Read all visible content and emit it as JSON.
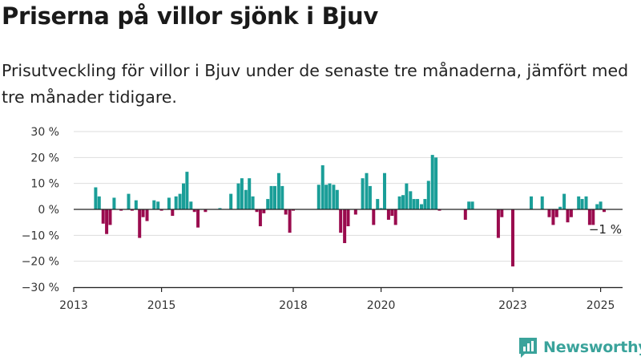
{
  "header": {
    "title": "Priserna på villor sjönk i Bjuv",
    "subtitle": "Prisutveckling för villor i Bjuv under de senaste tre månaderna, jämfört med tre månader tidigare."
  },
  "brand": {
    "name": "Newsworthy",
    "icon": "newsworthy-logo-icon",
    "color": "#3aa39b"
  },
  "colors": {
    "positive": "#1a9e98",
    "negative": "#9a0b4e",
    "grid": "#dddddd",
    "axis": "#222222"
  },
  "chart_data": {
    "type": "bar",
    "title": "",
    "xlabel": "",
    "ylabel": "",
    "ylim": [
      -30,
      30
    ],
    "yticks": [
      30,
      20,
      10,
      0,
      -10,
      -20,
      -30
    ],
    "ytick_labels": [
      "30 %",
      "20 %",
      "10 %",
      "0 %",
      "−10 %",
      "−20 %",
      "−30 %"
    ],
    "xlim": [
      2013.0,
      2025.5
    ],
    "xticks": [
      2013,
      2015,
      2018,
      2020,
      2023,
      2025
    ],
    "xtick_labels": [
      "2013",
      "2015",
      "2018",
      "2020",
      "2023",
      "2025"
    ],
    "last_value_label": "−1 %",
    "grid": true,
    "x": [
      2013.5,
      2013.58,
      2013.67,
      2013.75,
      2013.83,
      2013.92,
      2014.08,
      2014.25,
      2014.33,
      2014.42,
      2014.5,
      2014.58,
      2014.67,
      2014.83,
      2014.92,
      2015.0,
      2015.17,
      2015.25,
      2015.33,
      2015.42,
      2015.5,
      2015.58,
      2015.67,
      2015.75,
      2015.83,
      2016.0,
      2016.33,
      2016.58,
      2016.75,
      2016.83,
      2016.92,
      2017.0,
      2017.08,
      2017.17,
      2017.25,
      2017.33,
      2017.42,
      2017.5,
      2017.58,
      2017.67,
      2017.75,
      2017.83,
      2017.92,
      2018.0,
      2018.58,
      2018.67,
      2018.75,
      2018.83,
      2018.92,
      2019.0,
      2019.08,
      2019.17,
      2019.25,
      2019.42,
      2019.58,
      2019.67,
      2019.75,
      2019.83,
      2019.92,
      2020.0,
      2020.08,
      2020.17,
      2020.25,
      2020.33,
      2020.42,
      2020.5,
      2020.58,
      2020.67,
      2020.75,
      2020.83,
      2020.92,
      2021.0,
      2021.08,
      2021.17,
      2021.25,
      2021.33,
      2021.92,
      2022.0,
      2022.08,
      2022.67,
      2022.75,
      2023.0,
      2023.42,
      2023.67,
      2023.83,
      2023.92,
      2024.0,
      2024.08,
      2024.17,
      2024.25,
      2024.33,
      2024.5,
      2024.58,
      2024.67,
      2024.75,
      2024.83,
      2024.92,
      2025.0,
      2025.08
    ],
    "values": [
      8.5,
      5,
      -5.5,
      -9.5,
      -6,
      4.5,
      -0.5,
      6,
      -0.5,
      3.5,
      -11,
      -3,
      -4.5,
      3.5,
      3,
      -0.5,
      4.5,
      -2.5,
      5,
      6,
      10,
      14.5,
      3,
      -1,
      -7,
      -1,
      0.5,
      6,
      10,
      12,
      7.5,
      12,
      5,
      -1,
      -6.5,
      -1.5,
      4,
      9,
      9,
      14,
      9,
      -2,
      -9,
      -0.5,
      9.5,
      17,
      9.5,
      10,
      9.5,
      7.5,
      -9,
      -13,
      -6.5,
      -2,
      12,
      14,
      9,
      -6,
      4,
      0.5,
      14,
      -4,
      -2.5,
      -6,
      5,
      5.5,
      10,
      7,
      4,
      4,
      2,
      4,
      11,
      21,
      20,
      -0.5,
      -4,
      3,
      3,
      -11,
      -3,
      -22,
      5,
      5,
      -3,
      -6,
      -3,
      1,
      6,
      -5,
      -3,
      5,
      4,
      5,
      -6,
      -6,
      2,
      3,
      -1
    ]
  }
}
